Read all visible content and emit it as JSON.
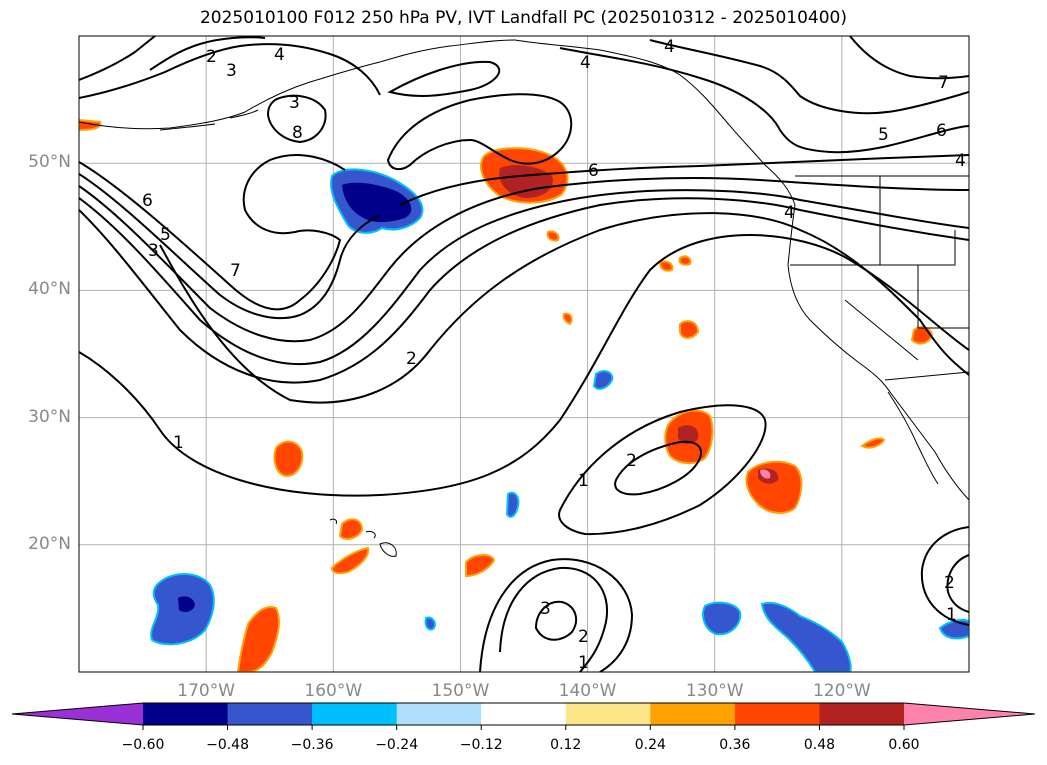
{
  "title": "2025010100 F012 250 hPa PV, IVT Landfall PC (2025010312 - 2025010400)",
  "map": {
    "projection": "PlateCarree",
    "lon_range": [
      -180,
      -110
    ],
    "lat_range": [
      10,
      60
    ],
    "lat_ticks": [
      {
        "value": 50,
        "label": "50°N"
      },
      {
        "value": 40,
        "label": "40°N"
      },
      {
        "value": 30,
        "label": "30°N"
      },
      {
        "value": 20,
        "label": "20°N"
      }
    ],
    "lon_ticks": [
      {
        "value": -170,
        "label": "170°W"
      },
      {
        "value": -160,
        "label": "160°W"
      },
      {
        "value": -150,
        "label": "150°W"
      },
      {
        "value": -140,
        "label": "140°W"
      },
      {
        "value": -130,
        "label": "130°W"
      },
      {
        "value": -120,
        "label": "120°W"
      }
    ],
    "gridlines": true,
    "contour_field": "250 hPa PV",
    "contour_labels": [
      "1",
      "2",
      "3",
      "4",
      "5",
      "6",
      "7",
      "8"
    ],
    "shaded_field": "IVT Landfall PC"
  },
  "colorbar": {
    "extend": "both",
    "boundaries": [
      -0.6,
      -0.48,
      -0.36,
      -0.24,
      -0.12,
      0.12,
      0.24,
      0.36,
      0.48,
      0.6
    ],
    "tick_labels": [
      "−0.60",
      "−0.48",
      "−0.36",
      "−0.24",
      "−0.12",
      "0.12",
      "0.24",
      "0.36",
      "0.48",
      "0.60"
    ],
    "colors": [
      "#9b30d6",
      "#00008b",
      "#3556cc",
      "#00bfff",
      "#aee0fb",
      "#ffffff",
      "#fde68a",
      "#ffa100",
      "#ff4500",
      "#b22222",
      "#ff82ab"
    ]
  }
}
